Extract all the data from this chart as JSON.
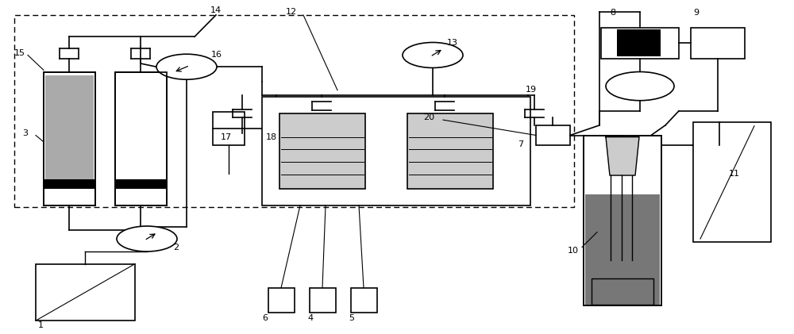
{
  "gray": "#aaaaaa",
  "lgray": "#cccccc",
  "dgray": "#777777",
  "lw": 1.2,
  "lw2": 1.0,
  "lw3": 0.8
}
